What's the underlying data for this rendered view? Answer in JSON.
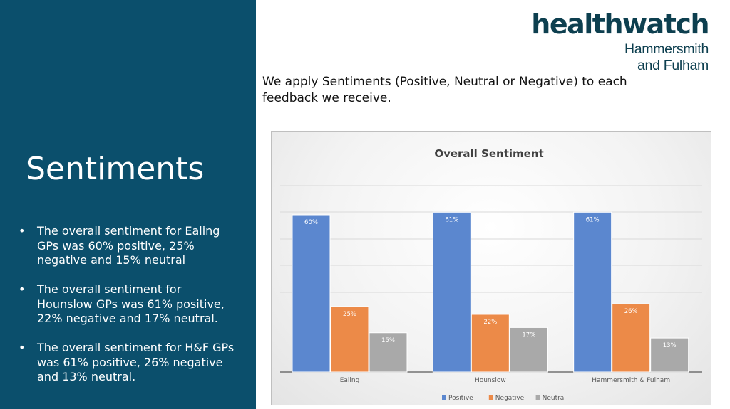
{
  "slide": {
    "title": "Sentiments",
    "intro": "We apply Sentiments (Positive, Neutral or Negative) to each feedback we receive.",
    "bullets": [
      "The overall sentiment for Ealing GPs was 60% positive, 25% negative and 15% neutral",
      "The overall sentiment for Hounslow GPs was 61% positive, 22% negative and 17% neutral.",
      "The overall sentiment for H&F GPs was 61% positive, 26% negative and 13% neutral."
    ]
  },
  "logo": {
    "word": "healthwatch",
    "line1": "Hammersmith",
    "line2": "and Fulham",
    "colors": {
      "text": "#0d3f4f",
      "accent": "#84bd00"
    }
  },
  "colors": {
    "panel": "#0b4f6c"
  },
  "chart_data": {
    "type": "bar",
    "title": "Overall Sentiment",
    "categories": [
      "Ealing",
      "Hounslow",
      "Hammersmith & Fulham"
    ],
    "series": [
      {
        "name": "Positive",
        "values": [
          60,
          61,
          61
        ],
        "color": "#5b87cf"
      },
      {
        "name": "Negative",
        "values": [
          25,
          22,
          26
        ],
        "color": "#ec8a48"
      },
      {
        "name": "Neutral",
        "values": [
          15,
          17,
          13
        ],
        "color": "#a9a9a9"
      }
    ],
    "value_format": "percent",
    "ylim": [
      0,
      60
    ],
    "grid": true,
    "legend": "bottom-center"
  }
}
